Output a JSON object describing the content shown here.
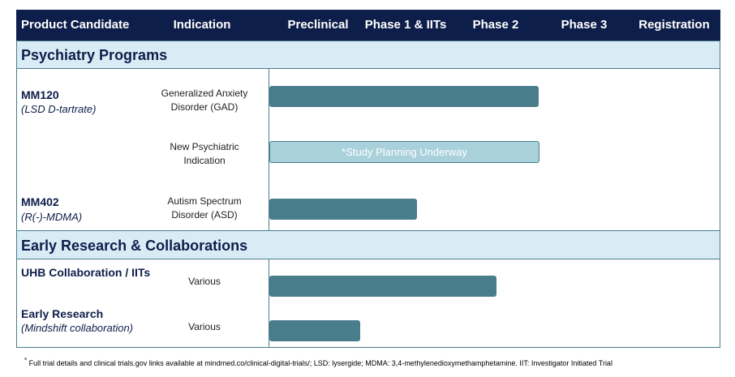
{
  "header": {
    "columns": [
      "Product Candidate",
      "Indication",
      "Preclinical",
      "Phase 1 & IITs",
      "Phase 2",
      "Phase 3",
      "Registration"
    ]
  },
  "sections": [
    {
      "title": "Psychiatry Programs",
      "rows": [
        {
          "candidate": "MM120",
          "compound": "(LSD D-tartrate)",
          "indication": "Generalized Anxiety Disorder (GAD)"
        },
        {
          "indication": "New Psychiatric Indication",
          "bar_label": "*Study Planning Underway"
        },
        {
          "candidate": "MM402",
          "compound": "(R(-)-MDMA)",
          "indication": "Autism Spectrum Disorder (ASD)"
        }
      ]
    },
    {
      "title": "Early Research & Collaborations",
      "rows": [
        {
          "candidate": "UHB Collaboration / IITs",
          "indication": "Various"
        },
        {
          "candidate": "Early Research",
          "compound": "(Mindshift collaboration)",
          "indication": "Various"
        }
      ]
    }
  ],
  "footnote": {
    "marker": "*",
    "text": "Full trial details and clinical trials.gov links available at mindmed.co/clinical-digital-trials/; LSD: lysergide; MDMA: 3,4-methylenedioxymethamphetamine. IIT: Investigator Initiated Trial"
  }
}
